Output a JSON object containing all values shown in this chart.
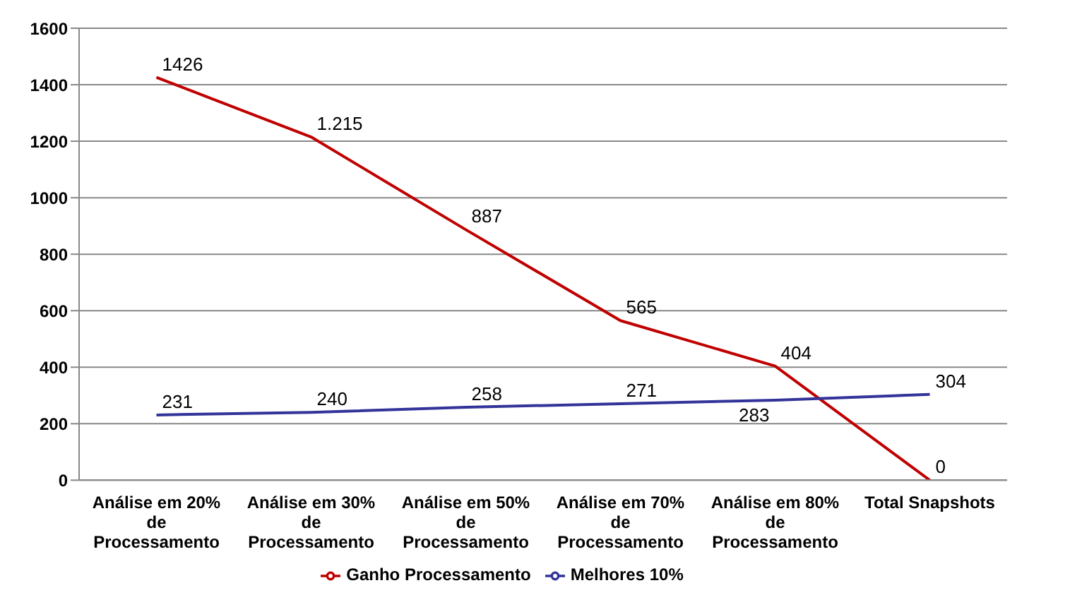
{
  "chart_data": {
    "type": "line",
    "categories": [
      "Análise em 20% de Processamento",
      "Análise em 30% de Processamento",
      "Análise em 50% de Processamento",
      "Análise em 70% de Processamento",
      "Análise em 80% de Processamento",
      "Total Snapshots"
    ],
    "series": [
      {
        "name": "Ganho Processamento",
        "color": "#c00000",
        "values": [
          1426,
          1215,
          887,
          565,
          404,
          0
        ],
        "value_labels": [
          "1426",
          "1.215",
          "887",
          "565",
          "404",
          "0"
        ]
      },
      {
        "name": "Melhores 10%",
        "color": "#333399",
        "values": [
          231,
          240,
          258,
          271,
          283,
          304
        ],
        "value_labels": [
          "231",
          "240",
          "258",
          "271",
          "283",
          "304"
        ]
      }
    ],
    "ylim": [
      0,
      1600
    ],
    "yticks": [
      0,
      200,
      400,
      600,
      800,
      1000,
      1200,
      1400,
      1600
    ],
    "grid": "y",
    "legend": "bottom",
    "marker": "none",
    "line_style": "solid"
  }
}
